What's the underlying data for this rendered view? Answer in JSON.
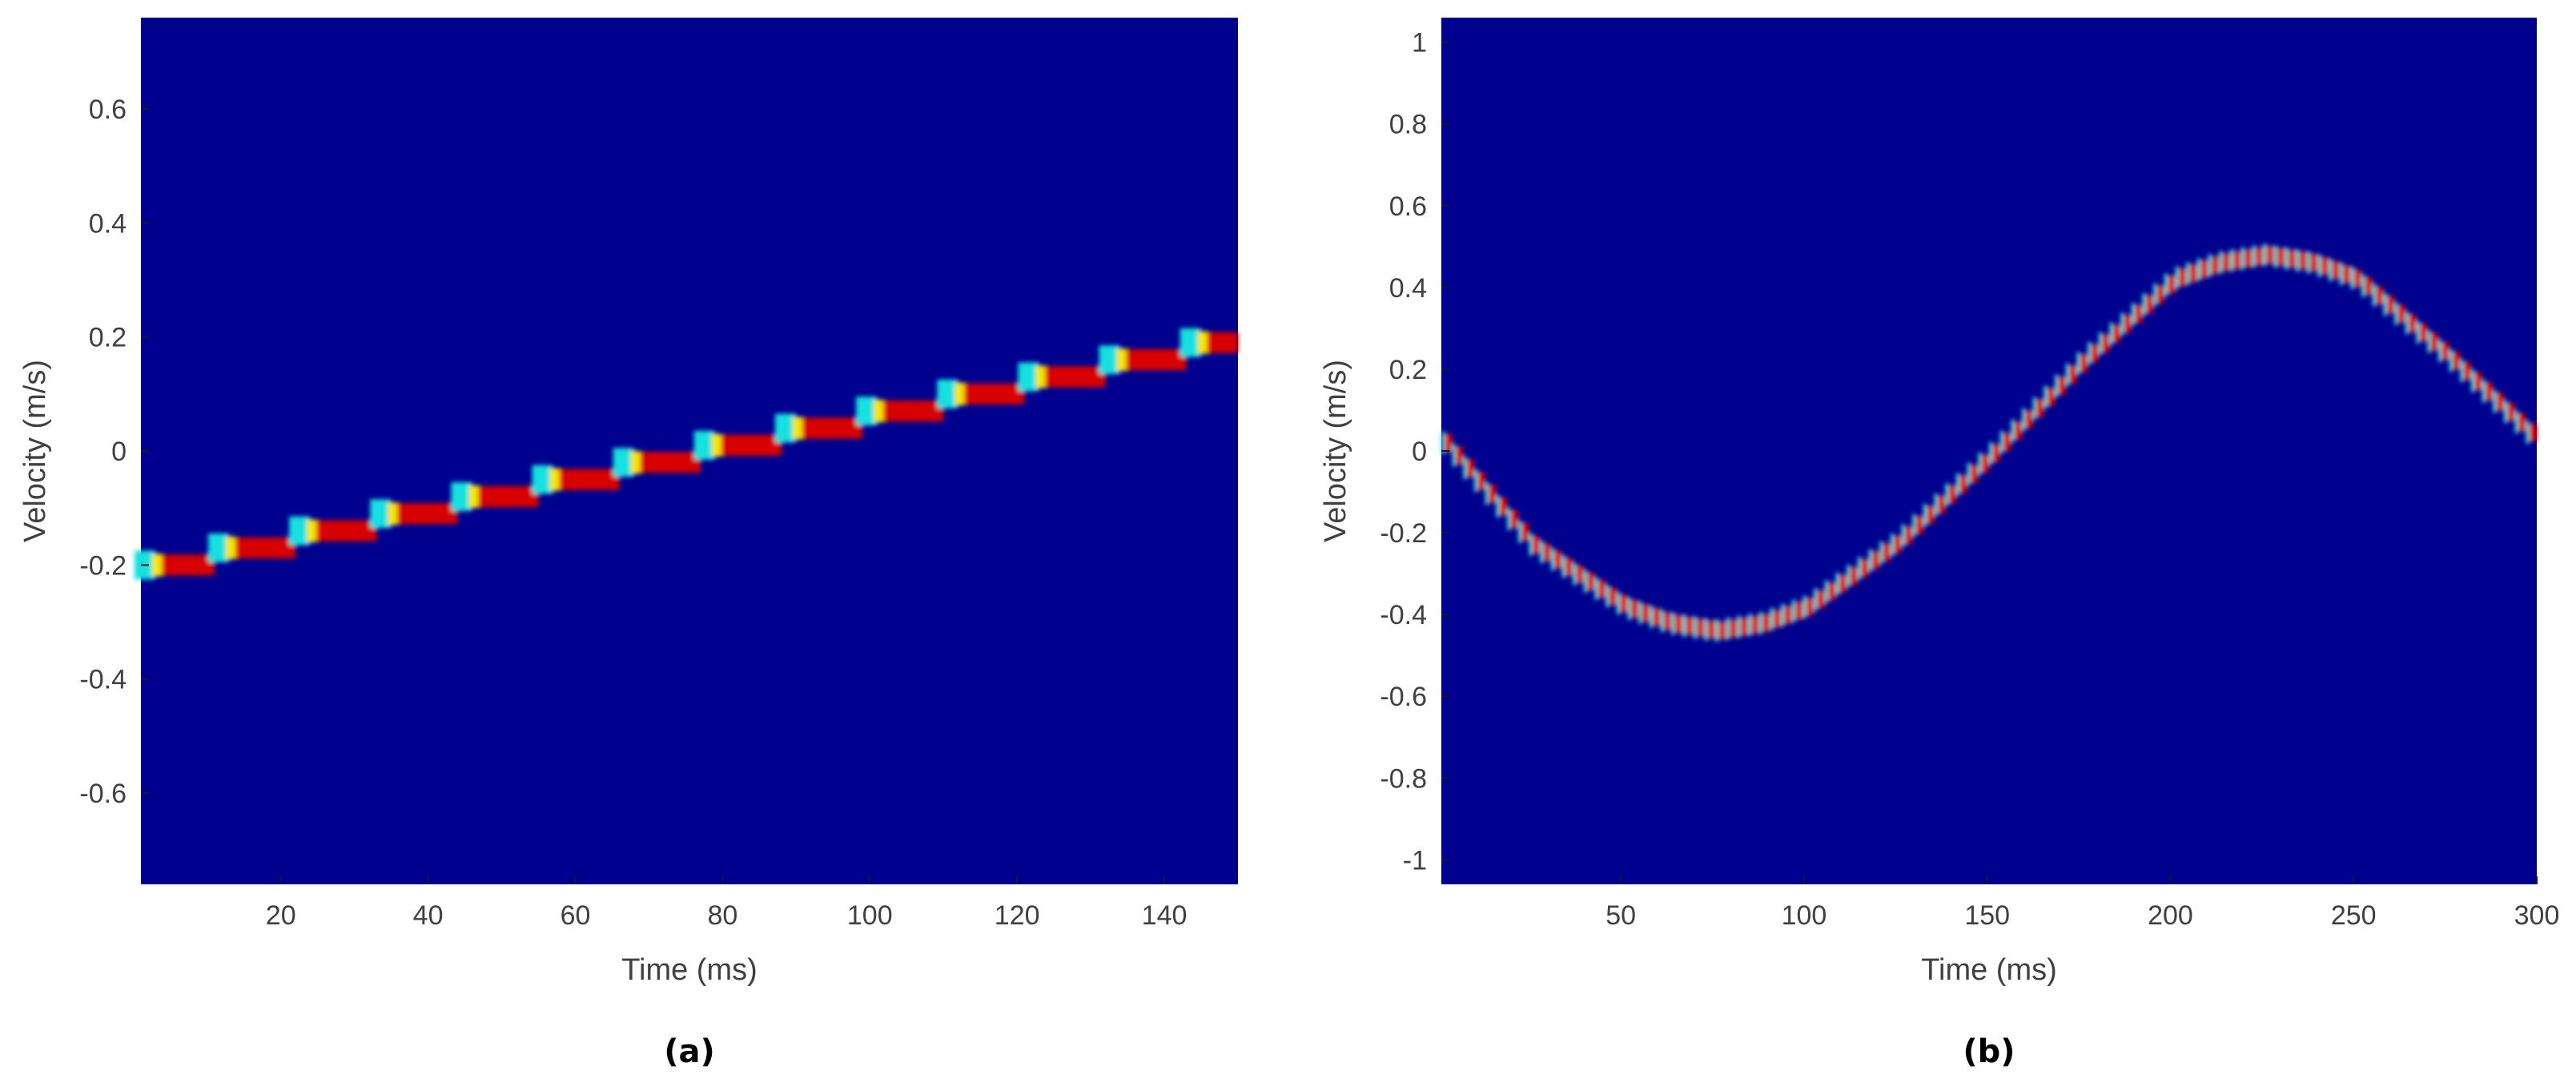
{
  "chart_data": [
    {
      "type": "heatmap",
      "panel_label": "(a)",
      "xlabel": "Time (ms)",
      "ylabel": "Velocity (m/s)",
      "xlim": [
        1,
        150
      ],
      "ylim": [
        -0.76,
        0.76
      ],
      "xticks": [
        20,
        40,
        60,
        80,
        100,
        120,
        140
      ],
      "yticks": [
        -0.6,
        -0.4,
        -0.2,
        0,
        0.2,
        0.4,
        0.6
      ],
      "xtick_labels": [
        "20",
        "40",
        "60",
        "80",
        "100",
        "120",
        "140"
      ],
      "ytick_labels": [
        "-0.6",
        "-0.4",
        "-0.2",
        "0",
        "0.2",
        "0.4",
        "0.6"
      ],
      "colormap": "jet",
      "background_color": "#00008f",
      "ridge": {
        "shape": "staircase",
        "x": [
          1,
          11,
          22,
          33,
          44,
          55,
          66,
          77,
          88,
          99,
          110,
          121,
          132,
          143,
          150
        ],
        "y": [
          -0.2,
          -0.17,
          -0.14,
          -0.11,
          -0.08,
          -0.05,
          -0.02,
          0.01,
          0.04,
          0.07,
          0.1,
          0.13,
          0.16,
          0.19,
          0.22
        ]
      }
    },
    {
      "type": "heatmap",
      "panel_label": "(b)",
      "xlabel": "Time (ms)",
      "ylabel": "Velocity (m/s)",
      "xlim": [
        1,
        300
      ],
      "ylim": [
        -1.06,
        1.06
      ],
      "xticks": [
        50,
        100,
        150,
        200,
        250,
        300
      ],
      "yticks": [
        -1,
        -0.8,
        -0.6,
        -0.4,
        -0.2,
        0,
        0.2,
        0.4,
        0.6,
        0.8,
        1
      ],
      "xtick_labels": [
        "50",
        "100",
        "150",
        "200",
        "250",
        "300"
      ],
      "ytick_labels": [
        "-1",
        "-0.8",
        "-0.6",
        "-0.4",
        "-0.2",
        "0",
        "0.2",
        "0.4",
        "0.6",
        "0.8",
        "1"
      ],
      "colormap": "jet",
      "background_color": "#00008f",
      "ridge": {
        "shape": "sinusoid",
        "x": [
          1,
          25,
          50,
          62,
          75,
          88,
          100,
          125,
          150,
          175,
          200,
          212,
          225,
          238,
          250,
          275,
          300
        ],
        "y": [
          0.02,
          -0.23,
          -0.38,
          -0.42,
          -0.44,
          -0.42,
          -0.38,
          -0.22,
          -0.01,
          0.22,
          0.42,
          0.46,
          0.48,
          0.46,
          0.42,
          0.23,
          0.02
        ]
      }
    }
  ]
}
